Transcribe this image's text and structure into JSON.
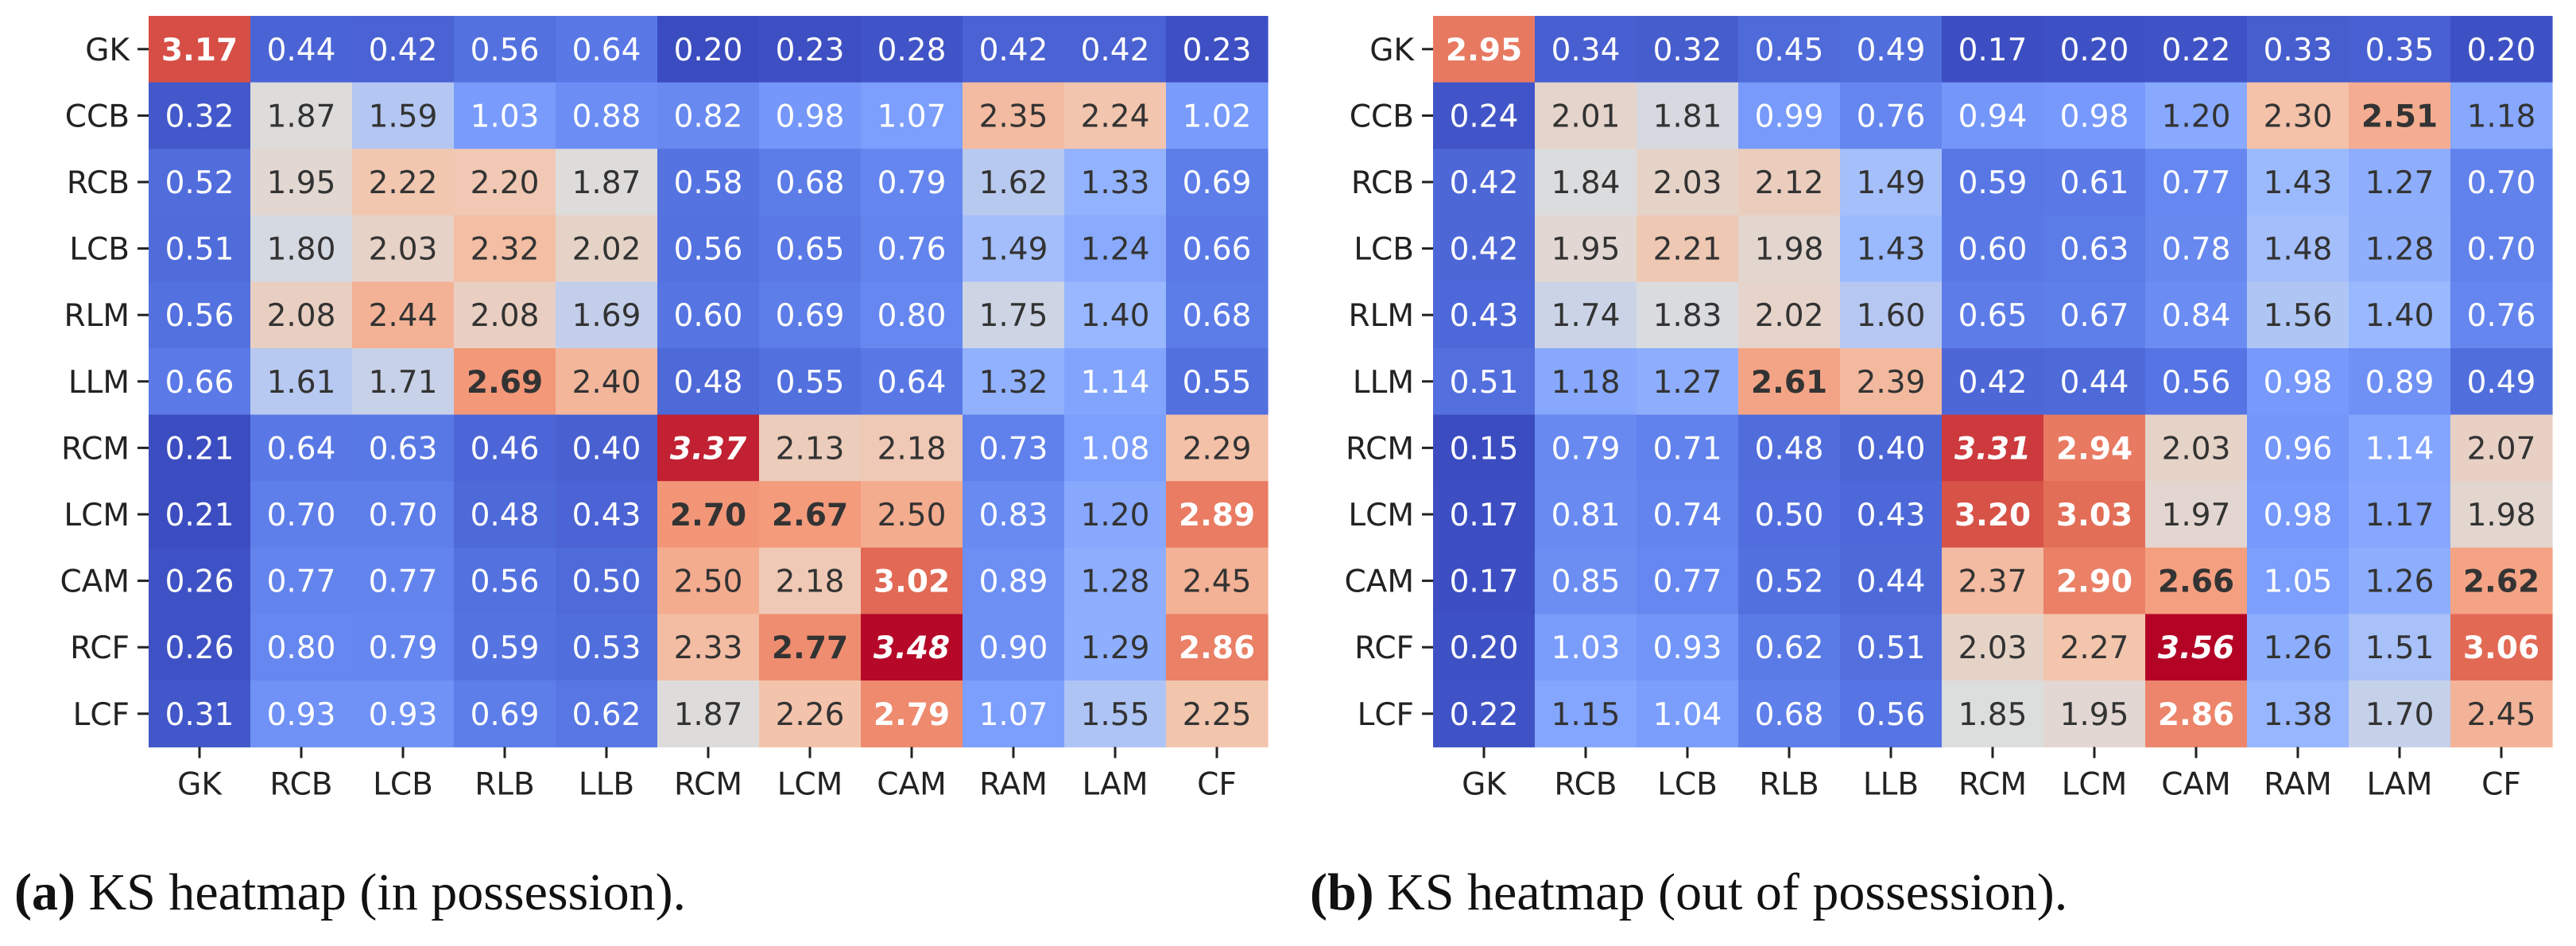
{
  "chart_data": [
    {
      "type": "heatmap",
      "title": "KS heatmap (in possession)",
      "rows": [
        "GK",
        "CCB",
        "RCB",
        "LCB",
        "RLM",
        "LLM",
        "RCM",
        "LCM",
        "CAM",
        "RCF",
        "LCF"
      ],
      "columns": [
        "GK",
        "RCB",
        "LCB",
        "RLB",
        "LLB",
        "RCM",
        "LCM",
        "CAM",
        "RAM",
        "LAM",
        "CF"
      ],
      "value_labels": [
        [
          "3.17",
          "0.44",
          "0.42",
          "0.56",
          "0.64",
          "0.20",
          "0.23",
          "0.28",
          "0.42",
          "0.42",
          "0.23"
        ],
        [
          "0.32",
          "1.87",
          "1.59",
          "1.03",
          "0.88",
          "0.82",
          "0.98",
          "1.07",
          "2.35",
          "2.24",
          "1.02"
        ],
        [
          "0.52",
          "1.95",
          "2.22",
          "2.20",
          "1.87",
          "0.58",
          "0.68",
          "0.79",
          "1.62",
          "1.33",
          "0.69"
        ],
        [
          "0.51",
          "1.80",
          "2.03",
          "2.32",
          "2.02",
          "0.56",
          "0.65",
          "0.76",
          "1.49",
          "1.24",
          "0.66"
        ],
        [
          "0.56",
          "2.08",
          "2.44",
          "2.08",
          "1.69",
          "0.60",
          "0.69",
          "0.80",
          "1.75",
          "1.40",
          "0.68"
        ],
        [
          "0.66",
          "1.61",
          "1.71",
          "2.69",
          "2.40",
          "0.48",
          "0.55",
          "0.64",
          "1.32",
          "1.14",
          "0.55"
        ],
        [
          "0.21",
          "0.64",
          "0.63",
          "0.46",
          "0.40",
          "3.37",
          "2.13",
          "2.18",
          "0.73",
          "1.08",
          "2.29"
        ],
        [
          "0.21",
          "0.70",
          "0.70",
          "0.48",
          "0.43",
          "2.70",
          "2.67",
          "2.50",
          "0.83",
          "1.20",
          "2.89"
        ],
        [
          "0.26",
          "0.77",
          "0.77",
          "0.56",
          "0.50",
          "2.50",
          "2.18",
          "3.02",
          "0.89",
          "1.28",
          "2.45"
        ],
        [
          "0.26",
          "0.80",
          "0.79",
          "0.59",
          "0.53",
          "2.33",
          "2.77",
          "3.48",
          "0.90",
          "1.29",
          "2.86"
        ],
        [
          "0.31",
          "0.93",
          "0.93",
          "0.69",
          "0.62",
          "1.87",
          "2.26",
          "2.79",
          "1.07",
          "1.55",
          "2.25"
        ]
      ],
      "bold_cells": [
        [
          0,
          0
        ],
        [
          5,
          3
        ],
        [
          6,
          5
        ],
        [
          7,
          5
        ],
        [
          7,
          6
        ],
        [
          7,
          10
        ],
        [
          8,
          7
        ],
        [
          9,
          6
        ],
        [
          9,
          7
        ],
        [
          9,
          10
        ],
        [
          10,
          7
        ]
      ],
      "italic_cells": [
        [
          6,
          5
        ],
        [
          9,
          7
        ]
      ],
      "colormap": "coolwarm",
      "vmin": 0.2,
      "vmax": 3.5
    },
    {
      "type": "heatmap",
      "title": "KS heatmap (out of possession)",
      "rows": [
        "GK",
        "CCB",
        "RCB",
        "LCB",
        "RLM",
        "LLM",
        "RCM",
        "LCM",
        "CAM",
        "RCF",
        "LCF"
      ],
      "columns": [
        "GK",
        "RCB",
        "LCB",
        "RLB",
        "LLB",
        "RCM",
        "LCM",
        "CAM",
        "RAM",
        "LAM",
        "CF"
      ],
      "value_labels": [
        [
          "2.95",
          "0.34",
          "0.32",
          "0.45",
          "0.49",
          "0.17",
          "0.20",
          "0.22",
          "0.33",
          "0.35",
          "0.20"
        ],
        [
          "0.24",
          "2.01",
          "1.81",
          "0.99",
          "0.76",
          "0.94",
          "0.98",
          "1.20",
          "2.30",
          "2.51",
          "1.18"
        ],
        [
          "0.42",
          "1.84",
          "2.03",
          "2.12",
          "1.49",
          "0.59",
          "0.61",
          "0.77",
          "1.43",
          "1.27",
          "0.70"
        ],
        [
          "0.42",
          "1.95",
          "2.21",
          "1.98",
          "1.43",
          "0.60",
          "0.63",
          "0.78",
          "1.48",
          "1.28",
          "0.70"
        ],
        [
          "0.43",
          "1.74",
          "1.83",
          "2.02",
          "1.60",
          "0.65",
          "0.67",
          "0.84",
          "1.56",
          "1.40",
          "0.76"
        ],
        [
          "0.51",
          "1.18",
          "1.27",
          "2.61",
          "2.39",
          "0.42",
          "0.44",
          "0.56",
          "0.98",
          "0.89",
          "0.49"
        ],
        [
          "0.15",
          "0.79",
          "0.71",
          "0.48",
          "0.40",
          "3.31",
          "2.94",
          "2.03",
          "0.96",
          "1.14",
          "2.07"
        ],
        [
          "0.17",
          "0.81",
          "0.74",
          "0.50",
          "0.43",
          "3.20",
          "3.03",
          "1.97",
          "0.98",
          "1.17",
          "1.98"
        ],
        [
          "0.17",
          "0.85",
          "0.77",
          "0.52",
          "0.44",
          "2.37",
          "2.90",
          "2.66",
          "1.05",
          "1.26",
          "2.62"
        ],
        [
          "0.20",
          "1.03",
          "0.93",
          "0.62",
          "0.51",
          "2.03",
          "2.27",
          "3.56",
          "1.26",
          "1.51",
          "3.06"
        ],
        [
          "0.22",
          "1.15",
          "1.04",
          "0.68",
          "0.56",
          "1.85",
          "1.95",
          "2.86",
          "1.38",
          "1.70",
          "2.45"
        ]
      ],
      "bold_cells": [
        [
          0,
          0
        ],
        [
          1,
          9
        ],
        [
          5,
          3
        ],
        [
          6,
          5
        ],
        [
          6,
          6
        ],
        [
          7,
          5
        ],
        [
          7,
          6
        ],
        [
          8,
          6
        ],
        [
          8,
          7
        ],
        [
          8,
          10
        ],
        [
          9,
          7
        ],
        [
          9,
          10
        ],
        [
          10,
          7
        ]
      ],
      "italic_cells": [
        [
          6,
          5
        ],
        [
          9,
          7
        ]
      ],
      "colormap": "coolwarm",
      "vmin": 0.15,
      "vmax": 3.56
    }
  ],
  "captions": [
    {
      "letter": "(a)",
      "text": " KS heatmap (in possession)."
    },
    {
      "letter": "(b)",
      "text": " KS heatmap (out of possession)."
    }
  ]
}
